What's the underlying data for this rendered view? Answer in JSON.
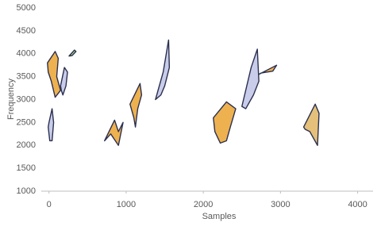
{
  "chart_data": {
    "type": "shape",
    "x_label": "Samples",
    "y_label": "Frequency",
    "xlim": [
      -100,
      4200
    ],
    "ylim": [
      1000,
      5000
    ],
    "xticks": [
      0,
      1000,
      2000,
      3000,
      4000
    ],
    "yticks": [
      1000,
      1500,
      2000,
      2500,
      3000,
      3500,
      4000,
      4500,
      5000
    ],
    "grid": false,
    "series": [
      {
        "color": "#eeb14f",
        "x": [
          -20,
          80,
          120,
          100,
          150,
          80,
          30,
          -10
        ],
        "y": [
          3800,
          4050,
          3900,
          3500,
          3200,
          3050,
          3400,
          3600
        ]
      },
      {
        "color": "#c9cdea",
        "x": [
          150,
          200,
          240,
          220,
          180,
          160
        ],
        "y": [
          3300,
          3700,
          3600,
          3300,
          3100,
          3200
        ]
      },
      {
        "color": "#a9d67a",
        "x": [
          260,
          330,
          350,
          300
        ],
        "y": [
          3950,
          4080,
          4050,
          3960
        ]
      },
      {
        "color": "#c9cdea",
        "x": [
          0,
          40,
          60,
          40,
          10,
          -10
        ],
        "y": [
          2500,
          2800,
          2500,
          2100,
          2100,
          2400
        ]
      },
      {
        "color": "#eeb14f",
        "x": [
          720,
          850,
          900,
          960,
          900,
          860,
          800
        ],
        "y": [
          2100,
          2550,
          2300,
          2500,
          2000,
          2100,
          2250
        ]
      },
      {
        "color": "#eeb14f",
        "x": [
          1050,
          1180,
          1200,
          1150,
          1120,
          1100
        ],
        "y": [
          2900,
          3350,
          3100,
          2800,
          2400,
          2600
        ]
      },
      {
        "color": "#c9cdea",
        "x": [
          1380,
          1480,
          1550,
          1560,
          1500,
          1450
        ],
        "y": [
          3000,
          3600,
          4300,
          3700,
          3300,
          3100
        ]
      },
      {
        "color": "#eeb14f",
        "x": [
          2130,
          2300,
          2420,
          2350,
          2300,
          2220,
          2150
        ],
        "y": [
          2600,
          2950,
          2800,
          2400,
          2100,
          2050,
          2300
        ]
      },
      {
        "color": "#c9cdea",
        "x": [
          2500,
          2620,
          2700,
          2720,
          2650,
          2550
        ],
        "y": [
          2850,
          3700,
          4100,
          3400,
          3100,
          2800
        ]
      },
      {
        "color": "#eeb14f",
        "x": [
          2720,
          2950,
          2900,
          2750
        ],
        "y": [
          3550,
          3750,
          3620,
          3580
        ]
      },
      {
        "color": "#e5c07a",
        "x": [
          3300,
          3450,
          3500,
          3480,
          3380,
          3320
        ],
        "y": [
          2400,
          2900,
          2700,
          2000,
          2300,
          2350
        ]
      }
    ]
  }
}
